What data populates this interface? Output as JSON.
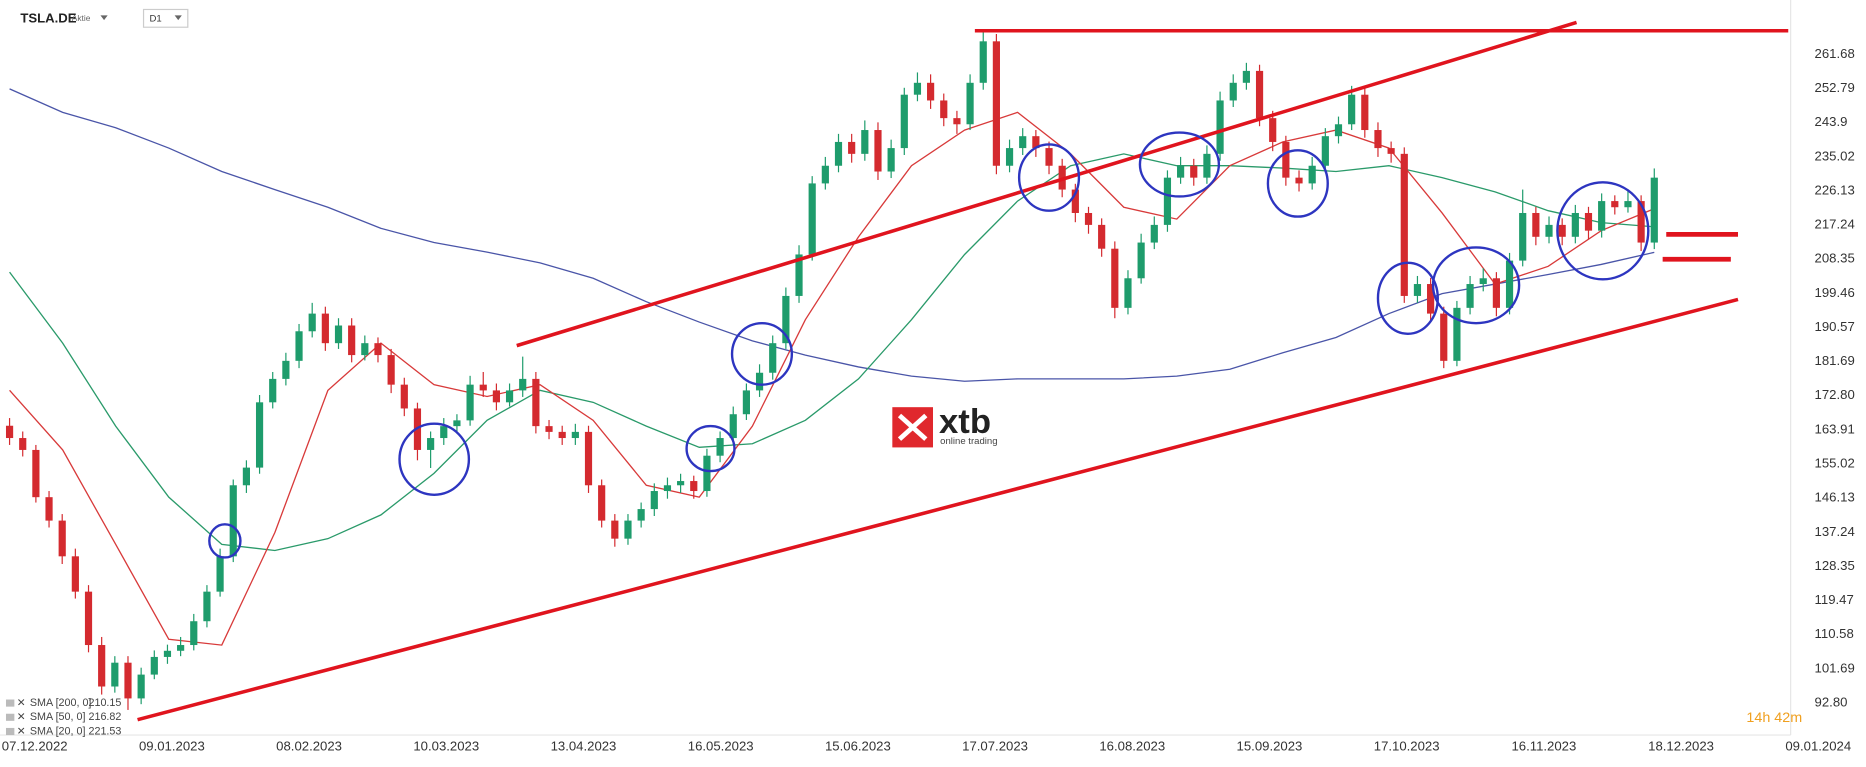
{
  "chart_data": {
    "type": "candlestick",
    "symbol": "TSLA.DE",
    "instrument_type": "Aktie",
    "interval": "D1",
    "timer": "14h 42m",
    "watermark": {
      "brand": "xtb",
      "tagline": "online trading"
    },
    "up_color": "#1e9c6c",
    "down_color": "#d42a2f",
    "ylim": [
      84.77,
      275.86
    ],
    "yticks": [
      261.68,
      252.79,
      243.9,
      235.02,
      226.13,
      217.24,
      208.35,
      199.46,
      190.57,
      181.69,
      {
        "value": 172.8,
        "label": "172.80"
      },
      163.91,
      155.02,
      146.13,
      137.24,
      128.35,
      119.47,
      110.58,
      101.69,
      {
        "value": 92.8,
        "label": "92.80"
      }
    ],
    "x_labels": [
      "07.12.2022",
      "09.01.2023",
      "08.02.2023",
      "10.03.2023",
      "13.04.2023",
      "16.05.2023",
      "15.06.2023",
      "17.07.2023",
      "16.08.2023",
      "15.09.2023",
      "17.10.2023",
      "16.11.2023",
      "18.12.2023",
      "09.01.2024"
    ],
    "candles": [
      [
        165,
        167,
        160,
        161.8
      ],
      [
        161.8,
        163.5,
        157,
        158.7
      ],
      [
        158.7,
        160,
        145,
        146.4
      ],
      [
        146.4,
        148,
        138.5,
        140.3
      ],
      [
        140.3,
        142,
        129,
        131
      ],
      [
        131,
        133,
        120,
        121.8
      ],
      [
        121.8,
        123.5,
        106,
        107.9
      ],
      [
        107.9,
        110,
        95,
        97.1
      ],
      [
        97.1,
        105,
        95.5,
        103.3
      ],
      [
        103.3,
        105,
        91,
        94
      ],
      [
        94,
        102,
        92.5,
        100.2
      ],
      [
        100.2,
        106.5,
        99,
        104.8
      ],
      [
        104.8,
        108,
        103,
        106.4
      ],
      [
        106.4,
        110,
        105,
        107.9
      ],
      [
        107.9,
        116,
        106.5,
        114.1
      ],
      [
        114.1,
        123.5,
        112.5,
        121.8
      ],
      [
        121.8,
        133,
        120.5,
        131
      ],
      [
        131,
        151,
        129.5,
        149.5
      ],
      [
        149.5,
        156,
        147.5,
        154.1
      ],
      [
        154.1,
        173,
        152.5,
        171.1
      ],
      [
        171.1,
        179,
        169.5,
        177.2
      ],
      [
        177.2,
        184,
        175.5,
        181.9
      ],
      [
        181.9,
        191.5,
        180,
        189.6
      ],
      [
        189.6,
        197,
        188,
        194.2
      ],
      [
        194.2,
        196,
        184.5,
        186.5
      ],
      [
        186.5,
        193,
        185,
        191.1
      ],
      [
        191.1,
        193,
        181.5,
        183.4
      ],
      [
        183.4,
        188.5,
        182,
        186.5
      ],
      [
        186.5,
        188,
        181.5,
        183.4
      ],
      [
        183.4,
        185,
        173.5,
        175.7
      ],
      [
        175.7,
        177.5,
        167.5,
        169.5
      ],
      [
        169.5,
        171,
        156,
        158.7
      ],
      [
        158.7,
        163.5,
        154,
        161.8
      ],
      [
        161.8,
        167,
        160,
        164.9
      ],
      [
        164.9,
        168,
        163,
        166.4
      ],
      [
        166.4,
        178,
        165,
        175.7
      ],
      [
        175.7,
        179,
        172.5,
        174.2
      ],
      [
        174.2,
        176,
        169,
        171.1
      ],
      [
        171.1,
        176,
        170,
        174.2
      ],
      [
        174.2,
        183,
        172.5,
        177.2
      ],
      [
        177.2,
        179,
        163,
        164.9
      ],
      [
        164.9,
        166.5,
        161.5,
        163.4
      ],
      [
        163.4,
        165,
        160,
        161.8
      ],
      [
        161.8,
        165.5,
        160,
        163.4
      ],
      [
        163.4,
        165,
        147.5,
        149.5
      ],
      [
        149.5,
        151,
        138.5,
        140.3
      ],
      [
        140.3,
        142,
        133.5,
        135.6
      ],
      [
        135.6,
        142,
        134,
        140.3
      ],
      [
        140.3,
        145,
        138.5,
        143.3
      ],
      [
        143.3,
        150,
        141.5,
        148
      ],
      [
        148,
        151.5,
        146,
        149.5
      ],
      [
        149.5,
        152.5,
        147.5,
        150.6
      ],
      [
        150.6,
        152,
        146,
        148
      ],
      [
        148,
        159,
        146.5,
        157.2
      ],
      [
        157.2,
        163.5,
        155.5,
        161.8
      ],
      [
        161.8,
        170,
        160,
        168
      ],
      [
        168,
        176,
        166.5,
        174.2
      ],
      [
        174.2,
        181,
        172.5,
        178.8
      ],
      [
        178.8,
        188.5,
        177,
        186.5
      ],
      [
        186.5,
        201,
        185,
        198.8
      ],
      [
        198.8,
        212,
        197,
        209.6
      ],
      [
        209.6,
        230,
        208,
        228.1
      ],
      [
        228.1,
        235,
        226.5,
        232.7
      ],
      [
        232.7,
        241,
        231,
        238.9
      ],
      [
        238.9,
        241,
        233.5,
        235.8
      ],
      [
        235.8,
        244.5,
        234,
        242
      ],
      [
        242,
        244,
        229,
        231.2
      ],
      [
        231.2,
        239.5,
        229.5,
        237.3
      ],
      [
        237.3,
        253,
        235.5,
        251.2
      ],
      [
        251.2,
        257,
        249.5,
        254.3
      ],
      [
        254.3,
        256.5,
        247.5,
        249.7
      ],
      [
        249.7,
        251.5,
        243,
        245.1
      ],
      [
        245.1,
        247,
        241,
        243.5
      ],
      [
        243.5,
        256.5,
        242,
        254.3
      ],
      [
        254.3,
        268,
        252.5,
        265.1
      ],
      [
        265.1,
        267,
        230.5,
        232.7
      ],
      [
        232.7,
        239.5,
        231,
        237.3
      ],
      [
        237.3,
        242.5,
        235.5,
        240.4
      ],
      [
        240.4,
        242,
        235,
        237.3
      ],
      [
        237.3,
        239,
        230.5,
        232.7
      ],
      [
        232.7,
        234.5,
        224.5,
        226.5
      ],
      [
        226.5,
        228,
        218,
        220.4
      ],
      [
        220.4,
        222,
        215,
        217.3
      ],
      [
        217.3,
        219,
        209,
        211.1
      ],
      [
        211.1,
        213,
        193,
        195.7
      ],
      [
        195.7,
        205.5,
        194,
        203.4
      ],
      [
        203.4,
        215,
        202,
        212.7
      ],
      [
        212.7,
        219.5,
        211,
        217.3
      ],
      [
        217.3,
        231.5,
        215.5,
        229.6
      ],
      [
        229.6,
        235,
        228,
        232.7
      ],
      [
        232.7,
        234.5,
        227.5,
        229.6
      ],
      [
        229.6,
        238,
        228,
        235.8
      ],
      [
        235.8,
        252,
        234,
        249.7
      ],
      [
        249.7,
        256.5,
        248,
        254.3
      ],
      [
        254.3,
        259.5,
        252.5,
        257.4
      ],
      [
        257.4,
        259,
        243,
        245.1
      ],
      [
        245.1,
        247,
        236.5,
        238.9
      ],
      [
        238.9,
        240.5,
        227.5,
        229.6
      ],
      [
        229.6,
        231.5,
        226,
        228.1
      ],
      [
        228.1,
        235,
        226.5,
        232.7
      ],
      [
        232.7,
        242.5,
        231,
        240.4
      ],
      [
        240.4,
        245.5,
        238.5,
        243.5
      ],
      [
        243.5,
        253.5,
        242,
        251.2
      ],
      [
        251.2,
        253,
        240,
        242
      ],
      [
        242,
        244,
        235,
        237.3
      ],
      [
        237.3,
        239,
        233.5,
        235.8
      ],
      [
        235.8,
        237.5,
        197,
        198.8
      ],
      [
        198.8,
        204,
        197,
        201.9
      ],
      [
        201.9,
        203.5,
        192,
        194.2
      ],
      [
        194.2,
        196,
        180,
        181.9
      ],
      [
        181.9,
        197.5,
        180.5,
        195.7
      ],
      [
        195.7,
        204,
        194,
        201.9
      ],
      [
        201.9,
        206,
        200,
        203.4
      ],
      [
        203.4,
        205,
        193.5,
        195.7
      ],
      [
        195.7,
        210,
        194,
        208
      ],
      [
        208,
        226.5,
        206.5,
        220.4
      ],
      [
        220.4,
        222,
        212,
        214.2
      ],
      [
        214.2,
        219.5,
        212.5,
        217.3
      ],
      [
        217.3,
        219,
        212,
        214.2
      ],
      [
        214.2,
        222.5,
        212.5,
        220.4
      ],
      [
        220.4,
        222,
        213.5,
        215.8
      ],
      [
        215.8,
        225.5,
        214,
        223.5
      ],
      [
        223.5,
        225,
        220,
        221.9
      ],
      [
        221.9,
        226,
        220.5,
        223.5
      ],
      [
        223.5,
        225,
        210.5,
        212.7
      ],
      [
        212.7,
        232,
        211,
        229.6
      ]
    ],
    "series": [
      {
        "name": "SMA [200, 0]",
        "color": "#4a55a8",
        "values": [
          252.7,
          246.6,
          242.6,
          237.3,
          231.2,
          226.5,
          221.9,
          216.4,
          212.7,
          210.2,
          207.4,
          203.4,
          197.3,
          192,
          187.1,
          183.4,
          180.3,
          177.9,
          176.6,
          177.2,
          177.2,
          177.2,
          177.9,
          179.7,
          184,
          188,
          194.2,
          199.4,
          201.9,
          204.4,
          207,
          210.15
        ]
      },
      {
        "name": "SMA [50, 0]",
        "color": "#2a9a6a",
        "values": [
          205,
          186.5,
          164.9,
          146.4,
          134.1,
          132.5,
          135.6,
          141.8,
          152.6,
          166.4,
          174.2,
          171.1,
          164.9,
          159.4,
          160.3,
          166.4,
          177.2,
          192.6,
          209.6,
          223.5,
          232.7,
          235.8,
          232.7,
          232.7,
          232.1,
          231.2,
          232.7,
          229.6,
          225.9,
          221,
          217.9,
          216.82
        ]
      },
      {
        "name": "SMA [20, 0]",
        "color": "#d83a3a",
        "values": [
          174.2,
          158.7,
          134.1,
          109.4,
          107.9,
          137.2,
          174.2,
          186.5,
          175.7,
          172.6,
          175.7,
          166.4,
          149.5,
          146.4,
          164.9,
          192.6,
          214.2,
          232.7,
          242,
          246.6,
          235.8,
          221.9,
          218.8,
          232.7,
          238.9,
          242,
          237.3,
          220.4,
          201.9,
          206.5,
          215.8,
          221.53
        ]
      }
    ]
  }
}
